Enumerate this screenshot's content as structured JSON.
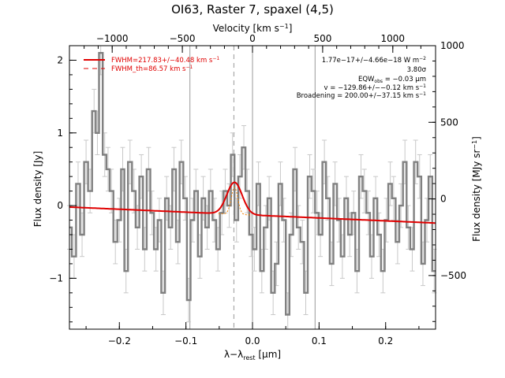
{
  "chart_data": {
    "type": "line",
    "title": "OI63, Raster 7, spaxel (4,5)",
    "xlabel": "λ−λ",
    "xlabel_sub": "rest",
    "xlabel_unit": "[μm]",
    "ylabel": "Flux density [Jy]",
    "ylabel_right": "Flux density [MJy sr",
    "ylabel_right_sup": "−1",
    "ylabel_right_close": "]",
    "xlabel_top": "Velocity [km s",
    "xlabel_top_sup": "−1",
    "xlabel_top_close": "]",
    "xlim": [
      -0.275,
      0.275
    ],
    "ylim": [
      -1.7,
      2.2
    ],
    "y2lim": [
      -850,
      1000
    ],
    "top_axis_velocity_ticks": [
      -1000,
      -500,
      0,
      500,
      1000
    ],
    "top_axis_labels": [
      "−1000",
      "−500",
      "0",
      "500",
      "1000"
    ],
    "x_ticks": [
      -0.2,
      -0.1,
      0.0,
      0.1,
      0.2
    ],
    "x_tick_labels": [
      "−0.2",
      "−0.1",
      "0.0",
      "0.1",
      "0.2"
    ],
    "y_ticks": [
      -1,
      0,
      1,
      2
    ],
    "y_tick_labels": [
      "−1",
      "0",
      "1",
      "2"
    ],
    "y2_ticks": [
      -500,
      0,
      500,
      1000
    ],
    "y2_tick_labels": [
      "−500",
      "0",
      "500",
      "1000"
    ],
    "vertical_lines_solid": [
      -0.094,
      0.0,
      0.094
    ],
    "vertical_line_dashed": -0.028,
    "legend": [
      {
        "label": "FWHM=217.83+/−40.48 km s",
        "sup": "−1",
        "style": "solid",
        "color": "#e00000"
      },
      {
        "label": "FWHM_th=86.57 km s",
        "sup": "−1",
        "style": "dashed",
        "color": "#e00000"
      }
    ],
    "annotations": [
      {
        "text": "1.77e−17+/−4.66e−18 W m",
        "sup": "−2"
      },
      {
        "text": "3.80σ"
      },
      {
        "text": "EQW",
        "sub": "obs",
        "tail": " = −0.03 μm"
      },
      {
        "text": "v = −129.86+/−−0.12 km s",
        "sup": "−1"
      },
      {
        "text": "Broadening = 200.00+/−37.15 km s",
        "sup": "−1"
      }
    ],
    "fit": {
      "continuum_start": -0.02,
      "continuum_end": -0.24,
      "peak_center": -0.027,
      "peak_amplitude": 0.44,
      "peak_sigma": 0.0115
    },
    "series": [
      {
        "kind": "spectrum",
        "color": "#808080",
        "x": [
          -0.275,
          -0.268,
          -0.262,
          -0.256,
          -0.25,
          -0.244,
          -0.238,
          -0.233,
          -0.228,
          -0.222,
          -0.217,
          -0.212,
          -0.206,
          -0.2,
          -0.195,
          -0.19,
          -0.184,
          -0.178,
          -0.173,
          -0.167,
          -0.162,
          -0.156,
          -0.151,
          -0.145,
          -0.14,
          -0.134,
          -0.129,
          -0.123,
          -0.118,
          -0.112,
          -0.107,
          -0.101,
          -0.096,
          -0.09,
          -0.085,
          -0.079,
          -0.074,
          -0.068,
          -0.063,
          -0.057,
          -0.052,
          -0.046,
          -0.041,
          -0.035,
          -0.03,
          -0.024,
          -0.019,
          -0.013,
          -0.008,
          -0.002,
          0.003,
          0.009,
          0.014,
          0.02,
          0.025,
          0.031,
          0.036,
          0.042,
          0.047,
          0.053,
          0.058,
          0.064,
          0.069,
          0.075,
          0.08,
          0.086,
          0.091,
          0.097,
          0.102,
          0.108,
          0.113,
          0.119,
          0.124,
          0.13,
          0.135,
          0.141,
          0.146,
          0.152,
          0.157,
          0.163,
          0.168,
          0.174,
          0.179,
          0.185,
          0.19,
          0.196,
          0.201,
          0.207,
          0.212,
          0.218,
          0.223,
          0.229,
          0.234,
          0.24,
          0.245,
          0.251,
          0.256,
          0.262,
          0.267,
          0.273
        ],
        "y": [
          -0.3,
          -0.7,
          0.3,
          -0.4,
          0.6,
          0.2,
          1.3,
          1.0,
          2.1,
          0.7,
          0.5,
          0.2,
          -0.5,
          -0.2,
          0.5,
          -0.9,
          0.6,
          0.2,
          -0.3,
          0.4,
          -0.6,
          0.5,
          -0.1,
          -0.6,
          -0.2,
          -1.2,
          0.1,
          -0.3,
          0.5,
          -0.5,
          0.6,
          0.1,
          -1.3,
          -0.2,
          0.2,
          -0.7,
          0.1,
          -0.3,
          0.2,
          -0.2,
          -0.6,
          -0.1,
          0.2,
          0.0,
          0.7,
          -0.2,
          0.4,
          0.8,
          0.2,
          -0.4,
          -0.6,
          0.3,
          -0.9,
          -0.3,
          0.1,
          -1.2,
          -0.8,
          0.3,
          -0.2,
          -1.5,
          -0.4,
          0.5,
          -0.3,
          -0.5,
          -1.2,
          0.4,
          0.2,
          -0.1,
          -0.4,
          0.6,
          0.1,
          -0.8,
          0.3,
          -0.2,
          -0.7,
          0.1,
          -0.4,
          -0.1,
          -0.9,
          0.4,
          0.2,
          -0.1,
          -0.7,
          0.1,
          -0.4,
          -0.9,
          -0.2,
          0.3,
          0.1,
          -0.5,
          0.0,
          0.6,
          -0.3,
          -0.6,
          0.6,
          0.4,
          -0.8,
          -0.2,
          0.4,
          -0.9
        ],
        "yerr": [
          0.3,
          0.3,
          0.3,
          0.3,
          0.3,
          0.3,
          0.3,
          0.3,
          0.3,
          0.3,
          0.3,
          0.3,
          0.3,
          0.3,
          0.3,
          0.3,
          0.3,
          0.3,
          0.3,
          0.3,
          0.3,
          0.3,
          0.3,
          0.3,
          0.3,
          0.3,
          0.3,
          0.3,
          0.3,
          0.3,
          0.3,
          0.3,
          0.3,
          0.3,
          0.3,
          0.3,
          0.3,
          0.3,
          0.3,
          0.3,
          0.3,
          0.3,
          0.3,
          0.3,
          0.3,
          0.3,
          0.3,
          0.3,
          0.3,
          0.3,
          0.3,
          0.3,
          0.3,
          0.3,
          0.3,
          0.3,
          0.3,
          0.3,
          0.3,
          0.3,
          0.3,
          0.3,
          0.3,
          0.3,
          0.3,
          0.3,
          0.3,
          0.3,
          0.3,
          0.3,
          0.3,
          0.3,
          0.3,
          0.3,
          0.3,
          0.3,
          0.3,
          0.3,
          0.3,
          0.3,
          0.3,
          0.3,
          0.3,
          0.3,
          0.3,
          0.3,
          0.3,
          0.3,
          0.3,
          0.3,
          0.3,
          0.3,
          0.3,
          0.3,
          0.3,
          0.3,
          0.3,
          0.3,
          0.3,
          0.3
        ]
      }
    ]
  }
}
